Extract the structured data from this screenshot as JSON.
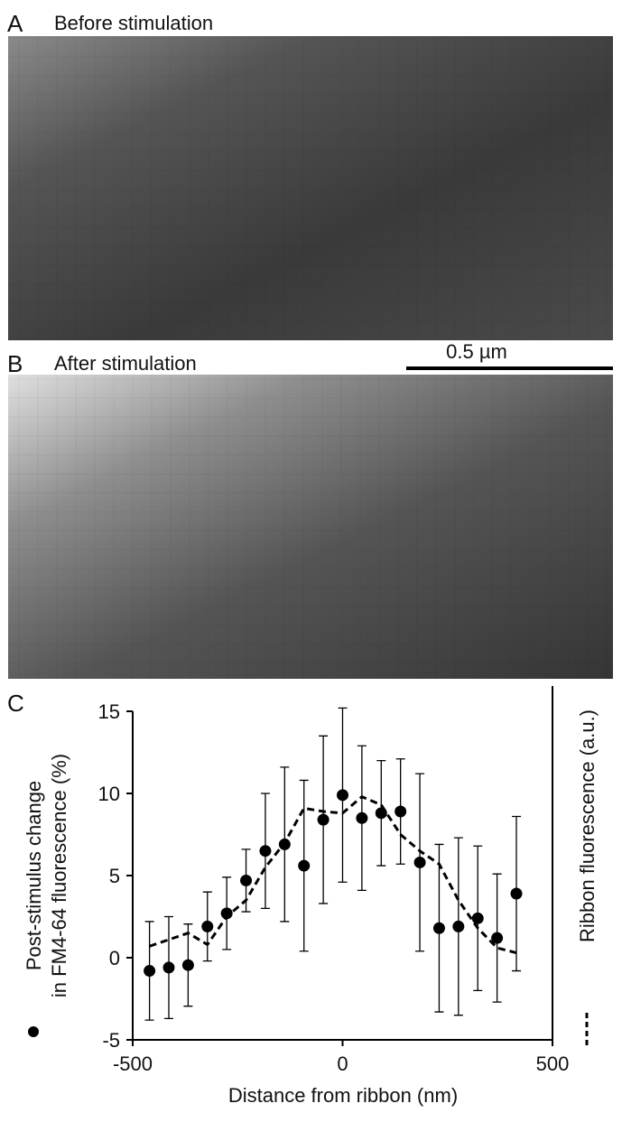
{
  "panels": [
    {
      "label": "A",
      "title": "Before stimulation"
    },
    {
      "label": "B",
      "title": "After stimulation"
    }
  ],
  "scale_bar": "0.5 µm",
  "chart_data": {
    "type": "scatter",
    "panel_label": "C",
    "x": [
      -460,
      -414,
      -368,
      -322,
      -276,
      -230,
      -184,
      -138,
      -92,
      -46,
      0,
      46,
      92,
      138,
      184,
      230,
      276,
      322,
      368,
      414
    ],
    "xlim": [
      -500,
      500
    ],
    "xticks": [
      -500,
      0,
      500
    ],
    "ylim": [
      -5,
      15
    ],
    "yticks": [
      -5,
      0,
      5,
      10,
      15
    ],
    "x_label": "Distance from ribbon (nm)",
    "y_label": [
      "Post-stimulus change",
      "in FM4-64 fluorescence (%)"
    ],
    "y2_label": "Ribbon fluorescence (a.u.)",
    "series": [
      {
        "style": "points",
        "color": "#000000",
        "values": [
          -0.8,
          -0.6,
          -0.45,
          1.9,
          2.7,
          4.7,
          6.5,
          6.9,
          5.6,
          8.4,
          9.9,
          8.5,
          8.8,
          8.9,
          5.8,
          1.8,
          1.9,
          2.4,
          1.2,
          3.9
        ],
        "errors": [
          3.0,
          3.1,
          2.5,
          2.1,
          2.2,
          1.9,
          3.5,
          4.7,
          5.2,
          5.1,
          5.3,
          4.4,
          3.2,
          3.2,
          5.4,
          5.1,
          5.4,
          4.4,
          3.9,
          4.7
        ]
      },
      {
        "style": "dashed",
        "color": "#000000",
        "values": [
          0.7,
          1.1,
          1.5,
          0.8,
          2.5,
          3.5,
          5.5,
          7.0,
          9.1,
          8.9,
          8.8,
          9.8,
          9.3,
          7.5,
          6.5,
          5.7,
          3.5,
          1.8,
          0.6,
          0.3
        ]
      }
    ]
  }
}
